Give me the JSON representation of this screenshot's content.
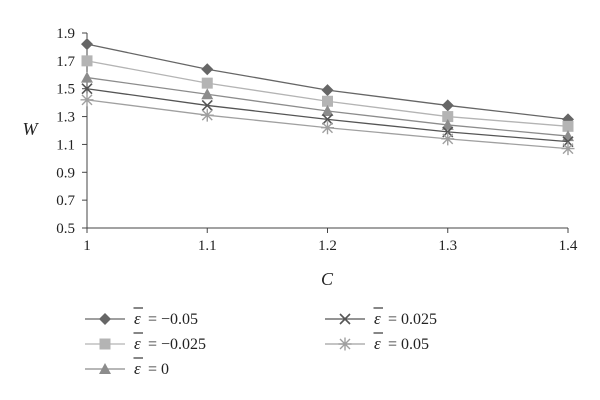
{
  "chart_data": {
    "type": "line",
    "xlabel": "C",
    "ylabel": "W",
    "x": [
      1,
      1.1,
      1.2,
      1.3,
      1.4
    ],
    "x_ticks": [
      "1",
      "1.1",
      "1.2",
      "1.3",
      "1.4"
    ],
    "ylim": [
      0.5,
      1.9
    ],
    "y_ticks": [
      "0.5",
      "0.7",
      "0.9",
      "1.1",
      "1.3",
      "1.5",
      "1.7",
      "1.9"
    ],
    "grid": false,
    "legend_position": "bottom",
    "series": [
      {
        "name": "ε̄ = −0.05",
        "eps_value": "−0.05",
        "marker": "diamond",
        "color": "#666666",
        "values": [
          1.82,
          1.64,
          1.49,
          1.38,
          1.28
        ]
      },
      {
        "name": "ε̄ = −0.025",
        "eps_value": "−0.025",
        "marker": "square",
        "color": "#b4b4b4",
        "values": [
          1.7,
          1.54,
          1.41,
          1.3,
          1.23
        ]
      },
      {
        "name": "ε̄ = 0",
        "eps_value": "0",
        "marker": "triangle",
        "color": "#8c8c8c",
        "values": [
          1.58,
          1.46,
          1.34,
          1.24,
          1.16
        ]
      },
      {
        "name": "ε̄ = 0.025",
        "eps_value": "0.025",
        "marker": "x",
        "color": "#555555",
        "values": [
          1.5,
          1.38,
          1.28,
          1.19,
          1.12
        ]
      },
      {
        "name": "ε̄ = 0.05",
        "eps_value": "0.05",
        "marker": "star",
        "color": "#a0a0a0",
        "values": [
          1.42,
          1.31,
          1.22,
          1.14,
          1.07
        ]
      }
    ]
  }
}
